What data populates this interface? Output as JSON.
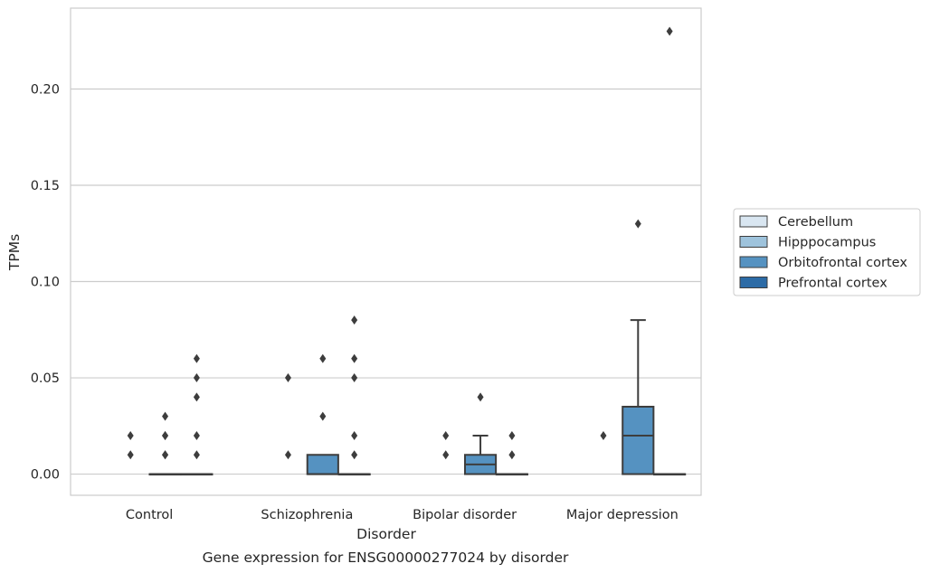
{
  "chart_data": {
    "type": "box",
    "title": "Gene expression for ENSG00000277024 by disorder",
    "xlabel": "Disorder",
    "ylabel": "TPMs",
    "categories": [
      "Control",
      "Schizophrenia",
      "Bipolar disorder",
      "Major depression"
    ],
    "yticks": [
      "0.00",
      "0.05",
      "0.10",
      "0.15",
      "0.20"
    ],
    "ytick_values": [
      0,
      0.05,
      0.1,
      0.15,
      0.2
    ],
    "ylim": [
      -0.011,
      0.242
    ],
    "grid": true,
    "legend_position": "right",
    "series": [
      {
        "name": "Cerebellum",
        "color": "#d9e6f1",
        "values": []
      },
      {
        "name": "Hipppocampus",
        "color": "#9ec3dc",
        "values": []
      },
      {
        "name": "Orbitofrontal cortex",
        "color": "#5592c1",
        "boxes": [
          {
            "category": "Control",
            "q1": 0,
            "median": 0,
            "q3": 0,
            "whisker_low": 0,
            "whisker_high": 0,
            "outliers": [
              0.01,
              0.02,
              0.02,
              0.03,
              0.01
            ]
          },
          {
            "category": "Schizophrenia",
            "q1": 0,
            "median": 0,
            "q3": 0.01,
            "whisker_low": 0,
            "whisker_high": 0.01,
            "outliers": [
              0.03,
              0.06
            ]
          },
          {
            "category": "Bipolar disorder",
            "q1": 0,
            "median": 0.005,
            "q3": 0.01,
            "whisker_low": 0,
            "whisker_high": 0.02,
            "outliers": [
              0.04
            ]
          },
          {
            "category": "Major depression",
            "q1": 0,
            "median": 0.02,
            "q3": 0.035,
            "whisker_low": 0,
            "whisker_high": 0.08,
            "outliers": [
              0.13
            ]
          }
        ]
      },
      {
        "name": "Prefrontal cortex",
        "color": "#2c6ba6",
        "boxes": [
          {
            "category": "Control",
            "q1": 0,
            "median": 0,
            "q3": 0,
            "whisker_low": 0,
            "whisker_high": 0,
            "outliers": [
              0.01,
              0.02,
              0.04,
              0.05,
              0.06
            ]
          },
          {
            "category": "Schizophrenia",
            "q1": 0,
            "median": 0,
            "q3": 0,
            "whisker_low": 0,
            "whisker_high": 0,
            "outliers": [
              0.01,
              0.02,
              0.05,
              0.06,
              0.08
            ]
          },
          {
            "category": "Bipolar disorder",
            "q1": 0,
            "median": 0,
            "q3": 0,
            "whisker_low": 0,
            "whisker_high": 0,
            "outliers": [
              0.01,
              0.02
            ]
          },
          {
            "category": "Major depression",
            "q1": 0,
            "median": 0,
            "q3": 0,
            "whisker_low": 0,
            "whisker_high": 0,
            "outliers": [
              0.23
            ]
          }
        ]
      }
    ],
    "extra_low_outliers": [
      {
        "category": "Control",
        "group": 0,
        "values": [
          0.01,
          0.02
        ]
      },
      {
        "category": "Schizophrenia",
        "group": 0,
        "values": [
          0.01,
          0.05
        ]
      },
      {
        "category": "Bipolar disorder",
        "group": 0,
        "values": [
          0.01,
          0.02
        ]
      },
      {
        "category": "Major depression",
        "group": 0,
        "values": [
          0.02
        ]
      }
    ]
  }
}
